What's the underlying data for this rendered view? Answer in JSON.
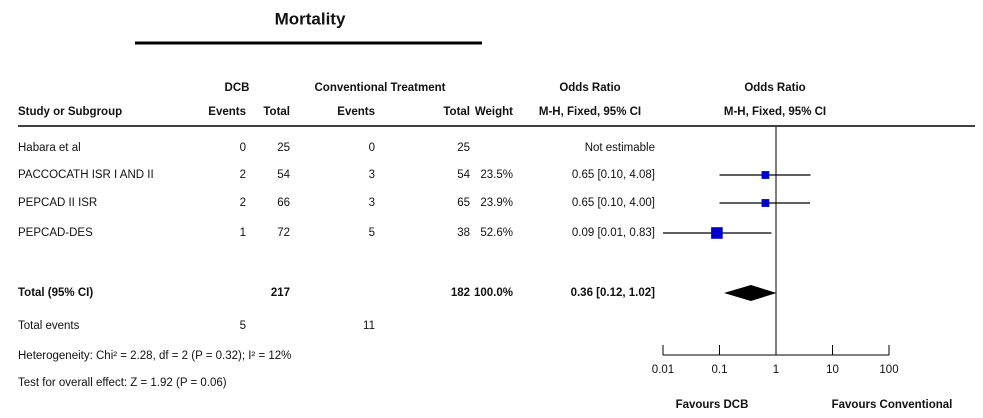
{
  "chart_data": {
    "type": "forest",
    "title": "Mortality",
    "group_headers": [
      "DCB",
      "Conventional Treatment",
      "Odds Ratio",
      "Odds Ratio"
    ],
    "columns": [
      "Study or Subgroup",
      "Events",
      "Total",
      "Events",
      "Total",
      "Weight",
      "M-H, Fixed, 95% CI",
      "M-H, Fixed, 95% CI"
    ],
    "studies": [
      {
        "name": "Habara et al",
        "dcb_events": 0,
        "dcb_total": 25,
        "ct_events": 0,
        "ct_total": 25,
        "weight": null,
        "weight_label": null,
        "or": null,
        "ci": null,
        "ci_label": "Not estimable"
      },
      {
        "name": "PACCOCATH ISR I AND II",
        "dcb_events": 2,
        "dcb_total": 54,
        "ct_events": 3,
        "ct_total": 54,
        "weight": 23.5,
        "weight_label": "23.5%",
        "or": 0.65,
        "ci": [
          0.1,
          4.08
        ],
        "ci_label": "0.65 [0.10, 4.08]"
      },
      {
        "name": "PEPCAD II ISR",
        "dcb_events": 2,
        "dcb_total": 66,
        "ct_events": 3,
        "ct_total": 65,
        "weight": 23.9,
        "weight_label": "23.9%",
        "or": 0.65,
        "ci": [
          0.1,
          4.0
        ],
        "ci_label": "0.65 [0.10, 4.00]"
      },
      {
        "name": "PEPCAD-DES",
        "dcb_events": 1,
        "dcb_total": 72,
        "ct_events": 5,
        "ct_total": 38,
        "weight": 52.6,
        "weight_label": "52.6%",
        "or": 0.09,
        "ci": [
          0.01,
          0.83
        ],
        "ci_label": "0.09 [0.01, 0.83]"
      }
    ],
    "total": {
      "name": "Total (95% CI)",
      "dcb_total": 217,
      "ct_total": 182,
      "weight": 100.0,
      "weight_label": "100.0%",
      "or": 0.36,
      "ci": [
        0.12,
        1.02
      ],
      "ci_label": "0.36 [0.12, 1.02]"
    },
    "total_events": {
      "name": "Total events",
      "dcb_events": 5,
      "ct_events": 11
    },
    "heterogeneity": "Heterogeneity: Chi² = 2.28, df = 2 (P = 0.32); I² = 12%",
    "overall_effect": "Test for overall effect: Z = 1.92 (P = 0.06)",
    "xlim": [
      0.01,
      100
    ],
    "xticks": [
      0.01,
      0.1,
      1,
      10,
      100
    ],
    "log_x": true,
    "favours": [
      "Favours DCB",
      "Favours Conventional"
    ],
    "color": "#0000cc"
  }
}
